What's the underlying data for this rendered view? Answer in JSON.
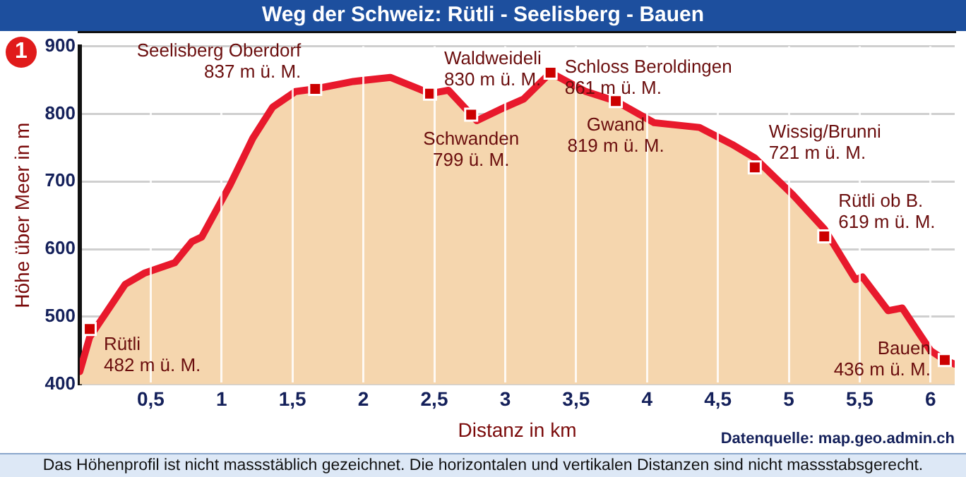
{
  "chart_data": {
    "type": "area",
    "title": "Weg der Schweiz: Rütli - Seelisberg - Bauen",
    "xlabel": "Distanz in km",
    "ylabel": "Höhe über Meer in m",
    "xlim": [
      0,
      6.17
    ],
    "ylim": [
      400,
      900
    ],
    "xticks": [
      {
        "value": 0.5,
        "label": "0,5"
      },
      1,
      {
        "value": 1.5,
        "label": "1,5"
      },
      2,
      {
        "value": 2.5,
        "label": "2,5"
      },
      3,
      {
        "value": 3.5,
        "label": "3,5"
      },
      4,
      {
        "value": 4.5,
        "label": "4,5"
      },
      5,
      {
        "value": 5.5,
        "label": "5,5"
      },
      6
    ],
    "yticks": [
      400,
      500,
      600,
      700,
      800,
      900
    ],
    "grid": true,
    "legend": false,
    "series": [
      {
        "color": "#e8192c",
        "marker": "none",
        "x": [
          0,
          0.07,
          0.32,
          0.46,
          0.67,
          0.79,
          0.86,
          1.06,
          1.22,
          1.36,
          1.52,
          1.66,
          1.93,
          2.19,
          2.39,
          2.47,
          2.6,
          2.76,
          2.8,
          3.0,
          3.13,
          3.32,
          3.57,
          3.78,
          4.05,
          4.37,
          4.6,
          4.76,
          5.03,
          5.25,
          5.47,
          5.52,
          5.7,
          5.8,
          6.0,
          6.1,
          6.17
        ],
        "values": [
          419,
          470,
          548,
          565,
          580,
          611,
          618,
          695,
          764,
          810,
          833,
          837,
          848,
          854,
          837,
          830,
          835,
          799,
          790,
          810,
          822,
          861,
          833,
          819,
          787,
          780,
          755,
          735,
          680,
          630,
          555,
          559,
          509,
          513,
          450,
          436,
          430
        ]
      },
      {
        "type": "scatter",
        "color": "#cc0000",
        "marker": "square",
        "x": [
          0.07,
          1.66,
          2.47,
          2.76,
          3.32,
          3.78,
          4.76,
          5.25,
          6.1
        ],
        "values": [
          482,
          837,
          830,
          799,
          861,
          819,
          721,
          619,
          436
        ]
      }
    ],
    "annotations": [
      {
        "text": "Rütli\n482 m ü. M.",
        "x": 0.07,
        "y": 482
      },
      {
        "text": "Seelisberg Oberdorf\n837 m ü. M.",
        "x": 1.66,
        "y": 837
      },
      {
        "text": "Waldweideli\n830 m ü. M.",
        "x": 2.47,
        "y": 830
      },
      {
        "text": "Schwanden\n799 ü. M.",
        "x": 2.76,
        "y": 799
      },
      {
        "text": "Schloss Beroldingen\n861 m ü. M.",
        "x": 3.32,
        "y": 861
      },
      {
        "text": "Gwand\n819 m ü. M.",
        "x": 3.78,
        "y": 819
      },
      {
        "text": "Wissig/Brunni\n721 m ü. M.",
        "x": 4.76,
        "y": 721
      },
      {
        "text": "Rütli ob B.\n619 m ü. M.",
        "x": 5.25,
        "y": 619
      },
      {
        "text": "Bauen\n436 m ü. M.",
        "x": 6.1,
        "y": 436
      },
      "1",
      "Datenquelle: map.geo.admin.ch",
      "Das Höhenprofil ist nicht massstäblich gezeichnet. Die horizontalen und vertikalen Distanzen sind nicht massstabsgerecht."
    ]
  }
}
